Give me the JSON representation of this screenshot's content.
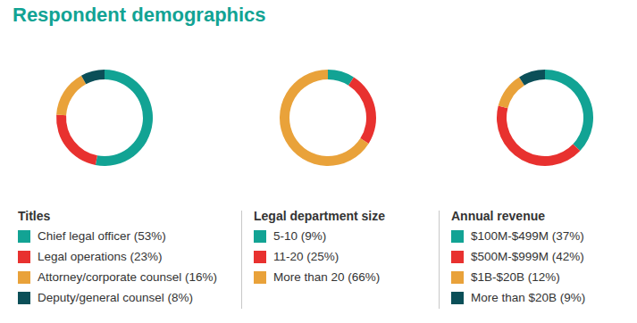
{
  "title": "Respondent demographics",
  "chart_data": [
    {
      "type": "pie",
      "title": "Titles",
      "categories": [
        "Chief legal officer (53%)",
        "Legal operations (23%)",
        "Attorney/corporate counsel (16%)",
        "Deputy/general counsel (8%)"
      ],
      "values": [
        53,
        23,
        16,
        8
      ],
      "colors": [
        "#12a394",
        "#e8312f",
        "#e9a23a",
        "#0b4f58"
      ]
    },
    {
      "type": "pie",
      "title": "Legal department size",
      "categories": [
        "5-10 (9%)",
        "11-20 (25%)",
        "More than 20 (66%)"
      ],
      "values": [
        9,
        25,
        66
      ],
      "colors": [
        "#12a394",
        "#e8312f",
        "#e9a23a"
      ]
    },
    {
      "type": "pie",
      "title": "Annual revenue",
      "categories": [
        "$100M-$499M (37%)",
        "$500M-$999M (42%)",
        "$1B-$20B (12%)",
        "More than $20B (9%)"
      ],
      "values": [
        37,
        42,
        12,
        9
      ],
      "colors": [
        "#12a394",
        "#e8312f",
        "#e9a23a",
        "#0b4f58"
      ]
    }
  ]
}
